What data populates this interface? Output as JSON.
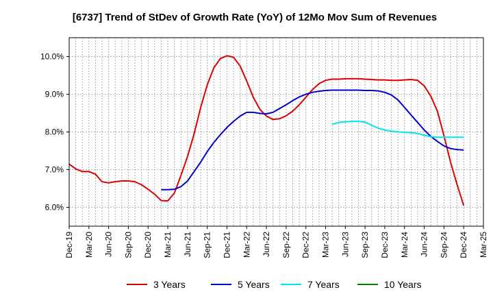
{
  "chart_data": {
    "type": "line",
    "title": "[6737]  Trend of StDev of Growth Rate (YoY) of 12Mo Mov Sum of Revenues",
    "xlabel": "",
    "ylabel": "",
    "ylim": [
      5.5,
      10.5
    ],
    "y_ticks": [
      6.0,
      7.0,
      8.0,
      9.0,
      10.0
    ],
    "y_tick_labels": [
      "6.0%",
      "7.0%",
      "8.0%",
      "9.0%",
      "10.0%"
    ],
    "x_range": [
      0,
      63
    ],
    "x_tick_positions": [
      0,
      3,
      6,
      9,
      12,
      15,
      18,
      21,
      24,
      27,
      30,
      33,
      36,
      39,
      42,
      45,
      48,
      51,
      54,
      57,
      60,
      63
    ],
    "x_tick_labels": [
      "Dec-19",
      "Mar-20",
      "Jun-20",
      "Sep-20",
      "Dec-20",
      "Mar-21",
      "Jun-21",
      "Sep-21",
      "Dec-21",
      "Mar-22",
      "Jun-22",
      "Sep-22",
      "Dec-22",
      "Mar-23",
      "Jun-23",
      "Sep-23",
      "Dec-23",
      "Mar-24",
      "Jun-24",
      "Sep-24",
      "Dec-24",
      "Mar-25"
    ],
    "grid": true,
    "legend_position": "bottom",
    "series": [
      {
        "name": "3 Years",
        "color": "#dd0000",
        "x": [
          0,
          1,
          2,
          3,
          4,
          5,
          6,
          7,
          8,
          9,
          10,
          11,
          12,
          13,
          14,
          15,
          16,
          17,
          18,
          19,
          20,
          21,
          22,
          23,
          24,
          25,
          26,
          27,
          28,
          29,
          30,
          31,
          32,
          33,
          34,
          35,
          36,
          37,
          38,
          39,
          40,
          41,
          42,
          43,
          44,
          45,
          46,
          47,
          48,
          49,
          50,
          51,
          52,
          53,
          54,
          55,
          56,
          57,
          58,
          59,
          60
        ],
        "values": [
          7.15,
          7.02,
          6.95,
          6.95,
          6.88,
          6.68,
          6.65,
          6.68,
          6.7,
          6.7,
          6.68,
          6.6,
          6.48,
          6.35,
          6.18,
          6.17,
          6.38,
          6.85,
          7.35,
          7.95,
          8.65,
          9.25,
          9.7,
          9.95,
          10.02,
          9.98,
          9.75,
          9.35,
          8.92,
          8.6,
          8.42,
          8.33,
          8.35,
          8.43,
          8.55,
          8.72,
          8.92,
          9.12,
          9.28,
          9.37,
          9.4,
          9.4,
          9.41,
          9.41,
          9.41,
          9.4,
          9.39,
          9.38,
          9.38,
          9.37,
          9.37,
          9.38,
          9.39,
          9.37,
          9.22,
          8.95,
          8.55,
          7.9,
          7.2,
          6.6,
          6.05
        ]
      },
      {
        "name": "5 Years",
        "color": "#0000cc",
        "x": [
          14,
          15,
          16,
          17,
          18,
          19,
          20,
          21,
          22,
          23,
          24,
          25,
          26,
          27,
          28,
          29,
          30,
          31,
          32,
          33,
          34,
          35,
          36,
          37,
          38,
          39,
          40,
          41,
          42,
          43,
          44,
          45,
          46,
          47,
          48,
          49,
          50,
          51,
          52,
          53,
          54,
          55,
          56,
          57,
          58,
          59,
          60
        ],
        "values": [
          6.47,
          6.47,
          6.48,
          6.55,
          6.7,
          6.95,
          7.2,
          7.48,
          7.72,
          7.93,
          8.12,
          8.28,
          8.42,
          8.52,
          8.52,
          8.49,
          8.48,
          8.52,
          8.62,
          8.72,
          8.83,
          8.93,
          9.0,
          9.05,
          9.08,
          9.1,
          9.11,
          9.11,
          9.11,
          9.11,
          9.11,
          9.1,
          9.1,
          9.09,
          9.05,
          8.98,
          8.85,
          8.65,
          8.45,
          8.25,
          8.05,
          7.88,
          7.75,
          7.63,
          7.56,
          7.53,
          7.52
        ]
      },
      {
        "name": "7 Years",
        "color": "#00e5e5",
        "x": [
          40,
          41,
          42,
          43,
          44,
          45,
          46,
          47,
          48,
          49,
          50,
          51,
          52,
          53,
          54,
          55,
          56,
          57,
          58,
          59,
          60
        ],
        "values": [
          8.2,
          8.25,
          8.27,
          8.28,
          8.28,
          8.26,
          8.18,
          8.1,
          8.05,
          8.02,
          8.0,
          7.99,
          7.98,
          7.96,
          7.91,
          7.87,
          7.86,
          7.86,
          7.86,
          7.86,
          7.86
        ]
      },
      {
        "name": "10 Years",
        "color": "#008000",
        "x": [],
        "values": []
      }
    ]
  }
}
